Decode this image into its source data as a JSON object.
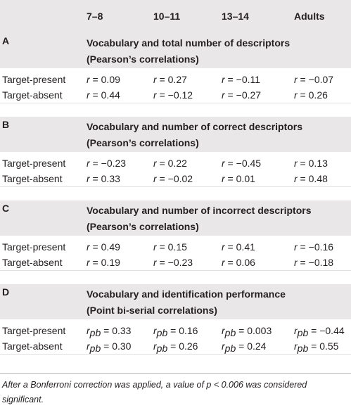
{
  "columns": [
    "",
    "7–8",
    "10–11",
    "13–14",
    "Adults"
  ],
  "sections": [
    {
      "letter": "A",
      "title_line1": "Vocabulary and total number of descriptors",
      "title_line2": "(Pearson’s correlations)",
      "stat_symbol": "r",
      "stat_sub": "",
      "rows": [
        {
          "label": "Target-present",
          "values": [
            "0.09",
            "0.27",
            "−0.11",
            "−0.07"
          ]
        },
        {
          "label": "Target-absent",
          "values": [
            "0.44",
            "−0.12",
            "−0.27",
            "0.26"
          ]
        }
      ]
    },
    {
      "letter": "B",
      "title_line1": "Vocabulary and number of correct descriptors",
      "title_line2": "(Pearson’s correlations)",
      "stat_symbol": "r",
      "stat_sub": "",
      "rows": [
        {
          "label": "Target-present",
          "values": [
            "−0.23",
            "0.22",
            "−0.45",
            "0.13"
          ]
        },
        {
          "label": "Target-absent",
          "values": [
            "0.33",
            "−0.02",
            "0.01",
            "0.48"
          ]
        }
      ]
    },
    {
      "letter": "C",
      "title_line1": "Vocabulary and number of incorrect descriptors",
      "title_line2": "(Pearson’s correlations)",
      "stat_symbol": "r",
      "stat_sub": "",
      "rows": [
        {
          "label": "Target-present",
          "values": [
            "0.49",
            "0.15",
            "0.41",
            "−0.16"
          ]
        },
        {
          "label": "Target-absent",
          "values": [
            "0.19",
            "−0.23",
            "0.06",
            "−0.18"
          ]
        }
      ]
    },
    {
      "letter": "D",
      "title_line1": "Vocabulary and identification performance",
      "title_line2": "(Point bi-serial correlations)",
      "stat_symbol": "r",
      "stat_sub": "pb",
      "rows": [
        {
          "label": "Target-present",
          "values": [
            "0.33",
            "0.16",
            "0.003",
            "−0.44"
          ]
        },
        {
          "label": "Target-absent",
          "values": [
            "0.30",
            "0.26",
            "0.24",
            "0.55"
          ]
        }
      ]
    }
  ],
  "footnote": "After a Bonferroni correction was applied, a value of p < 0.006 was considered significant."
}
